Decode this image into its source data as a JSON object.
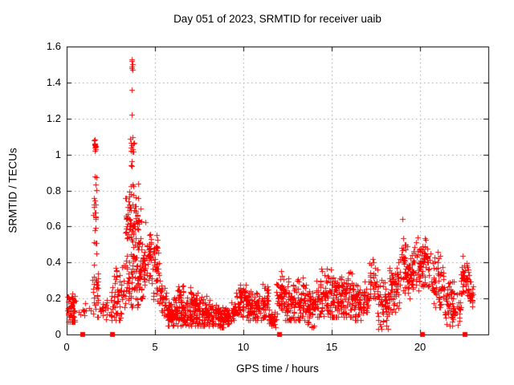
{
  "chart_data": {
    "type": "scatter",
    "title": "Day 051 of 2023, SRMTID for receiver uaib",
    "xlabel": "GPS time / hours",
    "ylabel": "SRMTID / TECUs",
    "xlim": [
      0,
      23.86
    ],
    "ylim": [
      0,
      1.6
    ],
    "x_ticks": {
      "values": [
        0,
        5,
        10,
        15,
        20
      ],
      "labels": [
        "0",
        "5",
        "10",
        "15",
        "20"
      ]
    },
    "y_ticks": {
      "values": [
        0,
        0.2,
        0.4,
        0.6,
        0.8,
        1.0,
        1.2,
        1.4,
        1.6
      ],
      "labels": [
        "0",
        "0.2",
        "0.4",
        "0.6",
        "0.8",
        "1",
        "1.2",
        "1.4",
        "1.6"
      ]
    },
    "grid": true,
    "grid_color": "#9e9e9e",
    "axis_color": "#000000",
    "background_color": "#ffffff",
    "marker": "plus",
    "marker_color": "#ff0000",
    "representation": "density_clusters",
    "cluster_fields": [
      "x_start",
      "x_end",
      "count",
      "y_min",
      "y_max",
      "y_typical"
    ],
    "clusters": [
      [
        0.03,
        0.5,
        55,
        0.07,
        0.26,
        0.13
      ],
      [
        0.55,
        1.4,
        10,
        0.08,
        0.2,
        0.12
      ],
      [
        1.45,
        1.8,
        32,
        0.1,
        0.45,
        0.22
      ],
      [
        1.5,
        1.7,
        22,
        0.45,
        1.0,
        0.68
      ],
      [
        1.55,
        1.66,
        7,
        1.02,
        1.09,
        1.05
      ],
      [
        1.85,
        2.45,
        18,
        0.07,
        0.22,
        0.13
      ],
      [
        2.5,
        3.1,
        55,
        0.08,
        0.45,
        0.18
      ],
      [
        3.15,
        4.15,
        65,
        0.15,
        0.42,
        0.27
      ],
      [
        3.3,
        4.1,
        95,
        0.35,
        0.92,
        0.6
      ],
      [
        3.6,
        3.82,
        14,
        0.9,
        1.12,
        1.0
      ],
      [
        4.1,
        4.5,
        45,
        0.2,
        0.7,
        0.4
      ],
      [
        4.5,
        4.8,
        30,
        0.28,
        0.68,
        0.45
      ],
      [
        4.85,
        5.3,
        45,
        0.15,
        0.62,
        0.38
      ],
      [
        5.3,
        5.65,
        25,
        0.1,
        0.35,
        0.18
      ],
      [
        5.65,
        8.2,
        240,
        0.05,
        0.24,
        0.12
      ],
      [
        6.2,
        6.6,
        18,
        0.18,
        0.31,
        0.24
      ],
      [
        7.0,
        7.4,
        14,
        0.16,
        0.28,
        0.22
      ],
      [
        8.2,
        9.3,
        95,
        0.04,
        0.18,
        0.1
      ],
      [
        9.3,
        9.55,
        20,
        0.06,
        0.2,
        0.12
      ],
      [
        9.55,
        10.2,
        55,
        0.1,
        0.32,
        0.19
      ],
      [
        10.2,
        11.1,
        80,
        0.08,
        0.26,
        0.15
      ],
      [
        11.1,
        11.45,
        35,
        0.1,
        0.31,
        0.18
      ],
      [
        11.45,
        11.85,
        35,
        0.03,
        0.16,
        0.09
      ],
      [
        11.85,
        12.3,
        45,
        0.1,
        0.38,
        0.22
      ],
      [
        12.3,
        13.6,
        115,
        0.08,
        0.35,
        0.18
      ],
      [
        13.6,
        14.1,
        45,
        0.04,
        0.3,
        0.14
      ],
      [
        14.1,
        15.3,
        110,
        0.1,
        0.42,
        0.22
      ],
      [
        15.3,
        16.3,
        95,
        0.1,
        0.4,
        0.21
      ],
      [
        16.3,
        17.1,
        70,
        0.08,
        0.33,
        0.18
      ],
      [
        17.1,
        17.6,
        30,
        0.2,
        0.5,
        0.3
      ],
      [
        17.6,
        18.25,
        55,
        0.03,
        0.33,
        0.16
      ],
      [
        18.25,
        18.85,
        55,
        0.12,
        0.42,
        0.25
      ],
      [
        18.85,
        19.6,
        70,
        0.2,
        0.57,
        0.35
      ],
      [
        19.6,
        20.65,
        90,
        0.22,
        0.56,
        0.38
      ],
      [
        20.65,
        21.4,
        60,
        0.15,
        0.48,
        0.3
      ],
      [
        21.4,
        22.3,
        70,
        0.05,
        0.33,
        0.16
      ],
      [
        22.3,
        22.75,
        45,
        0.22,
        0.47,
        0.32
      ],
      [
        22.75,
        23.0,
        25,
        0.14,
        0.34,
        0.22
      ]
    ],
    "highlight_points": [
      [
        3.66,
        1.53
      ],
      [
        3.69,
        1.52
      ],
      [
        3.71,
        1.5
      ],
      [
        3.67,
        1.49
      ],
      [
        3.7,
        1.48
      ],
      [
        3.72,
        1.47
      ],
      [
        3.7,
        1.36
      ],
      [
        3.69,
        1.22
      ],
      [
        1.56,
        1.08
      ],
      [
        1.6,
        1.06
      ],
      [
        1.58,
        1.04
      ],
      [
        1.62,
        1.03
      ],
      [
        19.0,
        0.64
      ],
      [
        14.95,
        0.36
      ],
      [
        4.2,
        0.7
      ],
      [
        0.1,
        0.21
      ]
    ],
    "zero_event_markers": {
      "marker": "filled-square",
      "color": "#ff0000",
      "y": 0,
      "x": [
        0.92,
        2.6,
        12.05,
        20.15,
        22.55
      ]
    },
    "seed": 7
  }
}
